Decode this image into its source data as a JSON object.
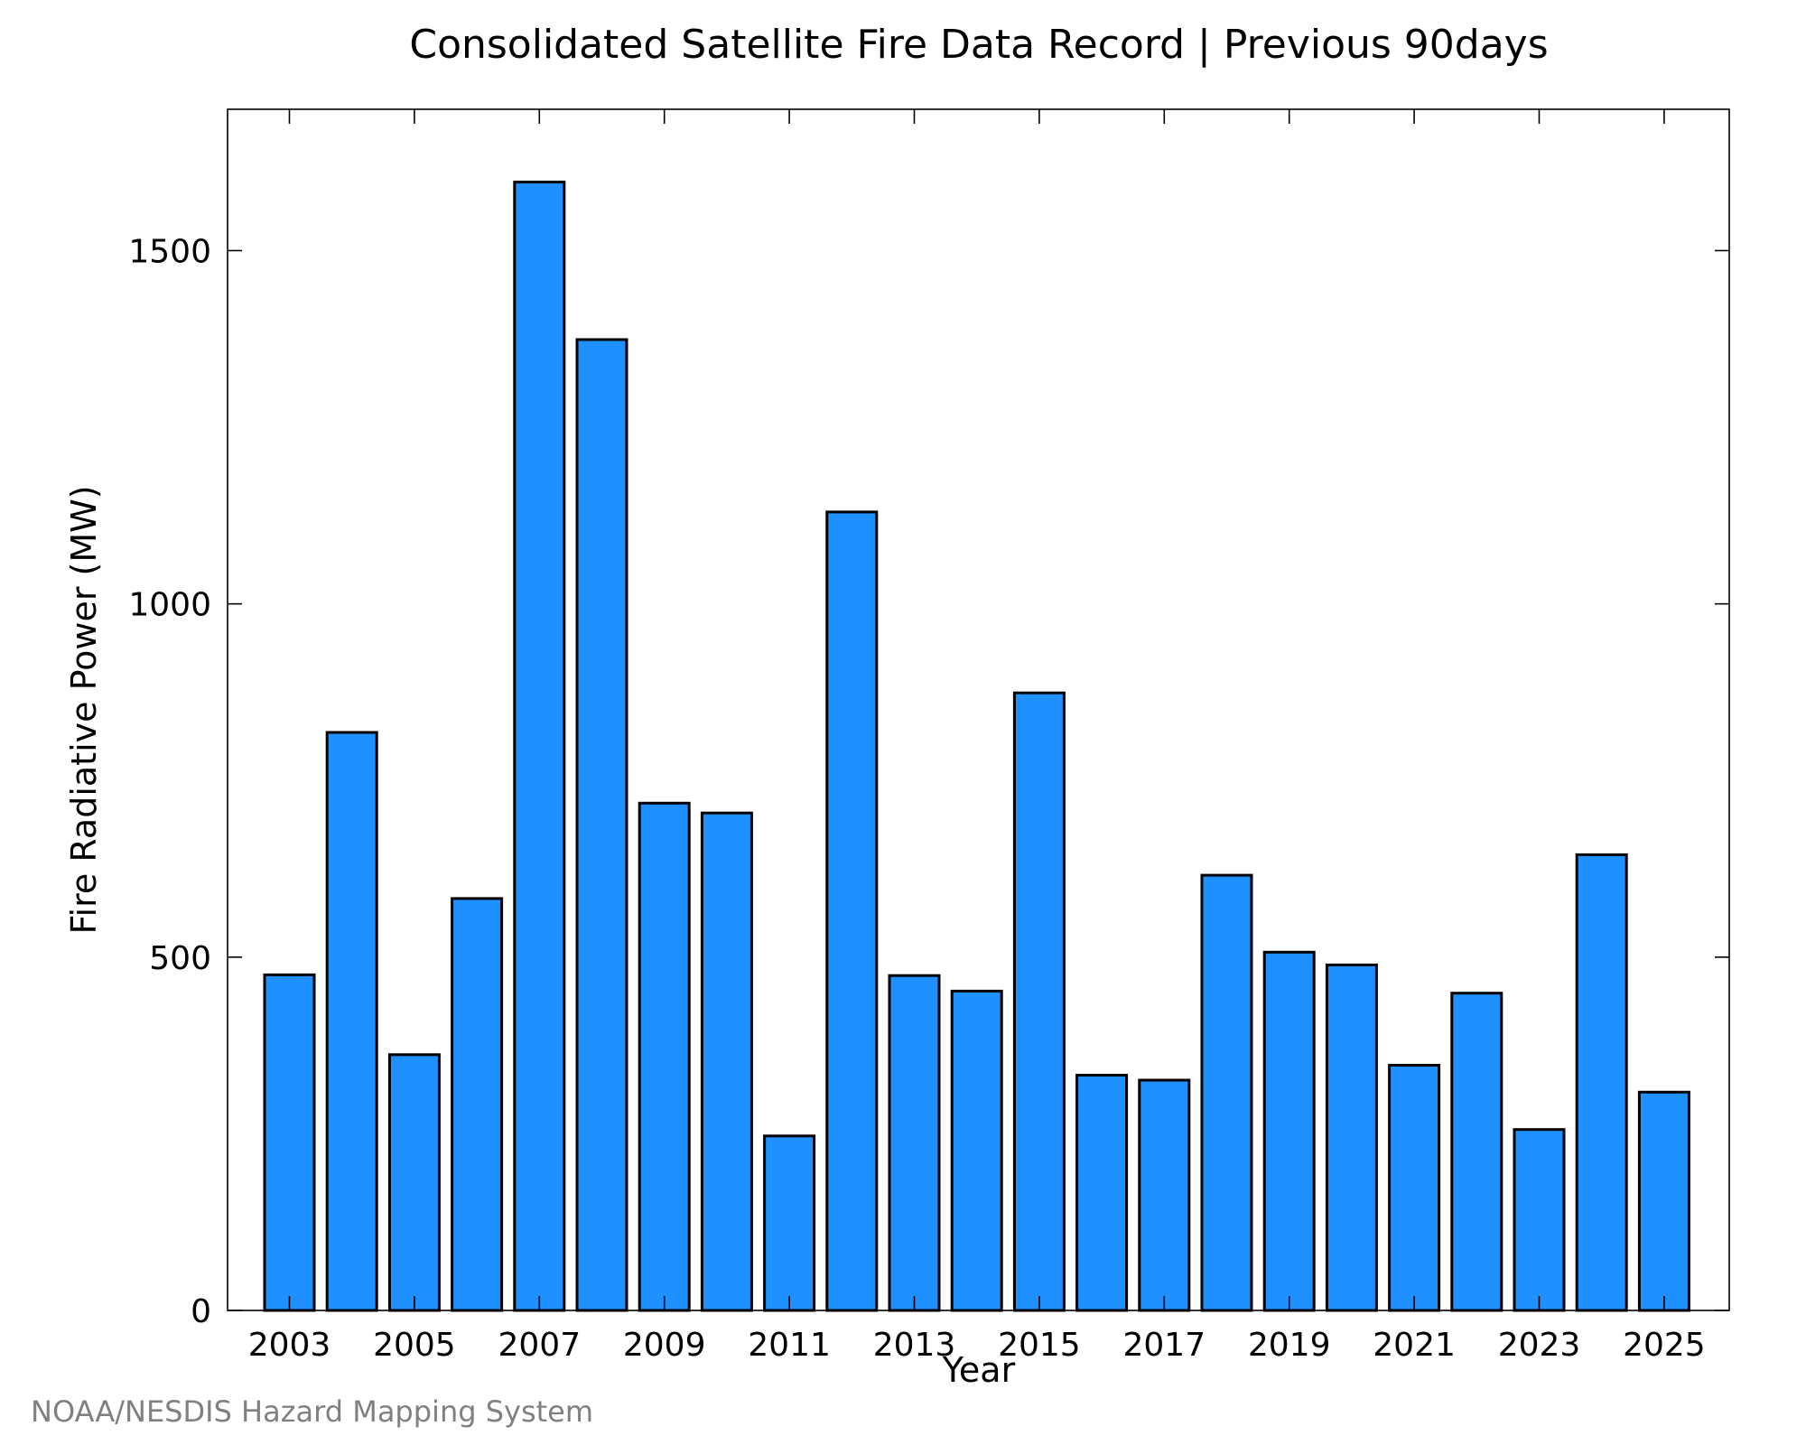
{
  "chart_data": {
    "type": "bar",
    "title": "Consolidated Satellite Fire Data Record | Previous 90days",
    "xlabel": "Year",
    "ylabel": "Fire Radiative Power (MW)",
    "categories": [
      "2003",
      "2004",
      "2005",
      "2006",
      "2007",
      "2008",
      "2009",
      "2010",
      "2011",
      "2012",
      "2013",
      "2014",
      "2015",
      "2016",
      "2017",
      "2018",
      "2019",
      "2020",
      "2021",
      "2022",
      "2023",
      "2024",
      "2025"
    ],
    "values": [
      475,
      818,
      362,
      583,
      1597,
      1374,
      718,
      704,
      247,
      1130,
      474,
      452,
      874,
      333,
      326,
      616,
      507,
      489,
      347,
      449,
      256,
      645,
      309
    ],
    "ylim": [
      0,
      1700
    ],
    "yticks": [
      0,
      500,
      1000,
      1500
    ],
    "xticks": [
      "2003",
      "2005",
      "2007",
      "2009",
      "2011",
      "2013",
      "2015",
      "2017",
      "2019",
      "2021",
      "2023",
      "2025"
    ],
    "bar_color": "#1E90FF",
    "grid": false
  },
  "credit": "NOAA/NESDIS Hazard Mapping System"
}
